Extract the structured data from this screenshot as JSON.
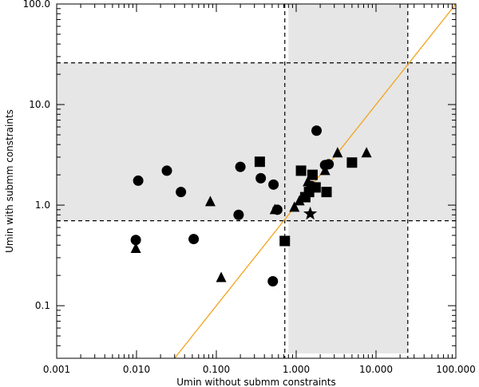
{
  "chart_data": {
    "type": "scatter",
    "title": "",
    "xlabel": "Umin without submm constraints",
    "ylabel": "Umin with submm constraints",
    "x_scale": "log",
    "y_scale": "log",
    "xlim": [
      0.001,
      100.0
    ],
    "ylim": [
      0.03,
      100.0
    ],
    "x_ticks": [
      {
        "value": 0.001,
        "label": "0.001"
      },
      {
        "value": 0.01,
        "label": "0.010"
      },
      {
        "value": 0.1,
        "label": "0.100"
      },
      {
        "value": 1,
        "label": "1.000"
      },
      {
        "value": 10,
        "label": "10.000"
      },
      {
        "value": 100,
        "label": "100.000"
      }
    ],
    "y_ticks": [
      {
        "value": 0.1,
        "label": "0.1"
      },
      {
        "value": 1,
        "label": "1.0"
      },
      {
        "value": 10,
        "label": "10.0"
      },
      {
        "value": 100,
        "label": "100.0"
      }
    ],
    "grid": false,
    "legend": "none",
    "shaded_bands": [
      {
        "orientation": "vertical",
        "x_range": [
          0.8,
          25
        ],
        "color": "#e6e6e6"
      },
      {
        "orientation": "horizontal",
        "y_range": [
          0.7,
          26
        ],
        "color": "#e6e6e6"
      }
    ],
    "reference_lines": [
      {
        "orientation": "vertical",
        "x": 0.72,
        "style": "dashed",
        "color": "#000000"
      },
      {
        "orientation": "vertical",
        "x": 25,
        "style": "dashed",
        "color": "#000000"
      },
      {
        "orientation": "horizontal",
        "y": 0.7,
        "style": "dashed",
        "color": "#000000"
      },
      {
        "orientation": "horizontal",
        "y": 26,
        "style": "dashed",
        "color": "#000000"
      }
    ],
    "one_to_one_line": {
      "label": "",
      "color": "#f2a31b",
      "x": [
        0.03,
        100
      ],
      "y": [
        0.03,
        100
      ]
    },
    "series": [
      {
        "marker": "circle",
        "color": "#000000",
        "points": [
          {
            "x": 0.0105,
            "y": 1.75
          },
          {
            "x": 0.024,
            "y": 2.2
          },
          {
            "x": 0.036,
            "y": 1.35
          },
          {
            "x": 0.0098,
            "y": 0.45
          },
          {
            "x": 0.052,
            "y": 0.46
          },
          {
            "x": 0.19,
            "y": 0.8
          },
          {
            "x": 0.2,
            "y": 2.4
          },
          {
            "x": 0.36,
            "y": 1.85
          },
          {
            "x": 0.52,
            "y": 1.6
          },
          {
            "x": 0.58,
            "y": 0.9
          },
          {
            "x": 0.51,
            "y": 0.175
          },
          {
            "x": 1.8,
            "y": 5.5
          },
          {
            "x": 1.55,
            "y": 1.55
          },
          {
            "x": 2.3,
            "y": 2.5
          },
          {
            "x": 2.55,
            "y": 2.55
          }
        ]
      },
      {
        "marker": "triangle",
        "color": "#000000",
        "points": [
          {
            "x": 0.0098,
            "y": 0.37
          },
          {
            "x": 0.084,
            "y": 1.08
          },
          {
            "x": 0.115,
            "y": 0.19
          },
          {
            "x": 0.54,
            "y": 0.9
          },
          {
            "x": 0.95,
            "y": 0.95
          },
          {
            "x": 1.1,
            "y": 1.1
          },
          {
            "x": 1.4,
            "y": 1.7
          },
          {
            "x": 2.3,
            "y": 2.2
          },
          {
            "x": 3.3,
            "y": 3.3
          },
          {
            "x": 7.6,
            "y": 3.3
          }
        ]
      },
      {
        "marker": "square",
        "color": "#000000",
        "points": [
          {
            "x": 0.35,
            "y": 2.7
          },
          {
            "x": 0.72,
            "y": 0.44
          },
          {
            "x": 1.15,
            "y": 2.2
          },
          {
            "x": 1.3,
            "y": 1.2
          },
          {
            "x": 1.45,
            "y": 1.35
          },
          {
            "x": 1.6,
            "y": 2.0
          },
          {
            "x": 1.75,
            "y": 1.5
          },
          {
            "x": 2.4,
            "y": 1.35
          },
          {
            "x": 5.0,
            "y": 2.65
          }
        ]
      },
      {
        "marker": "star",
        "color": "#000000",
        "points": [
          {
            "x": 1.5,
            "y": 0.82
          }
        ]
      }
    ]
  }
}
